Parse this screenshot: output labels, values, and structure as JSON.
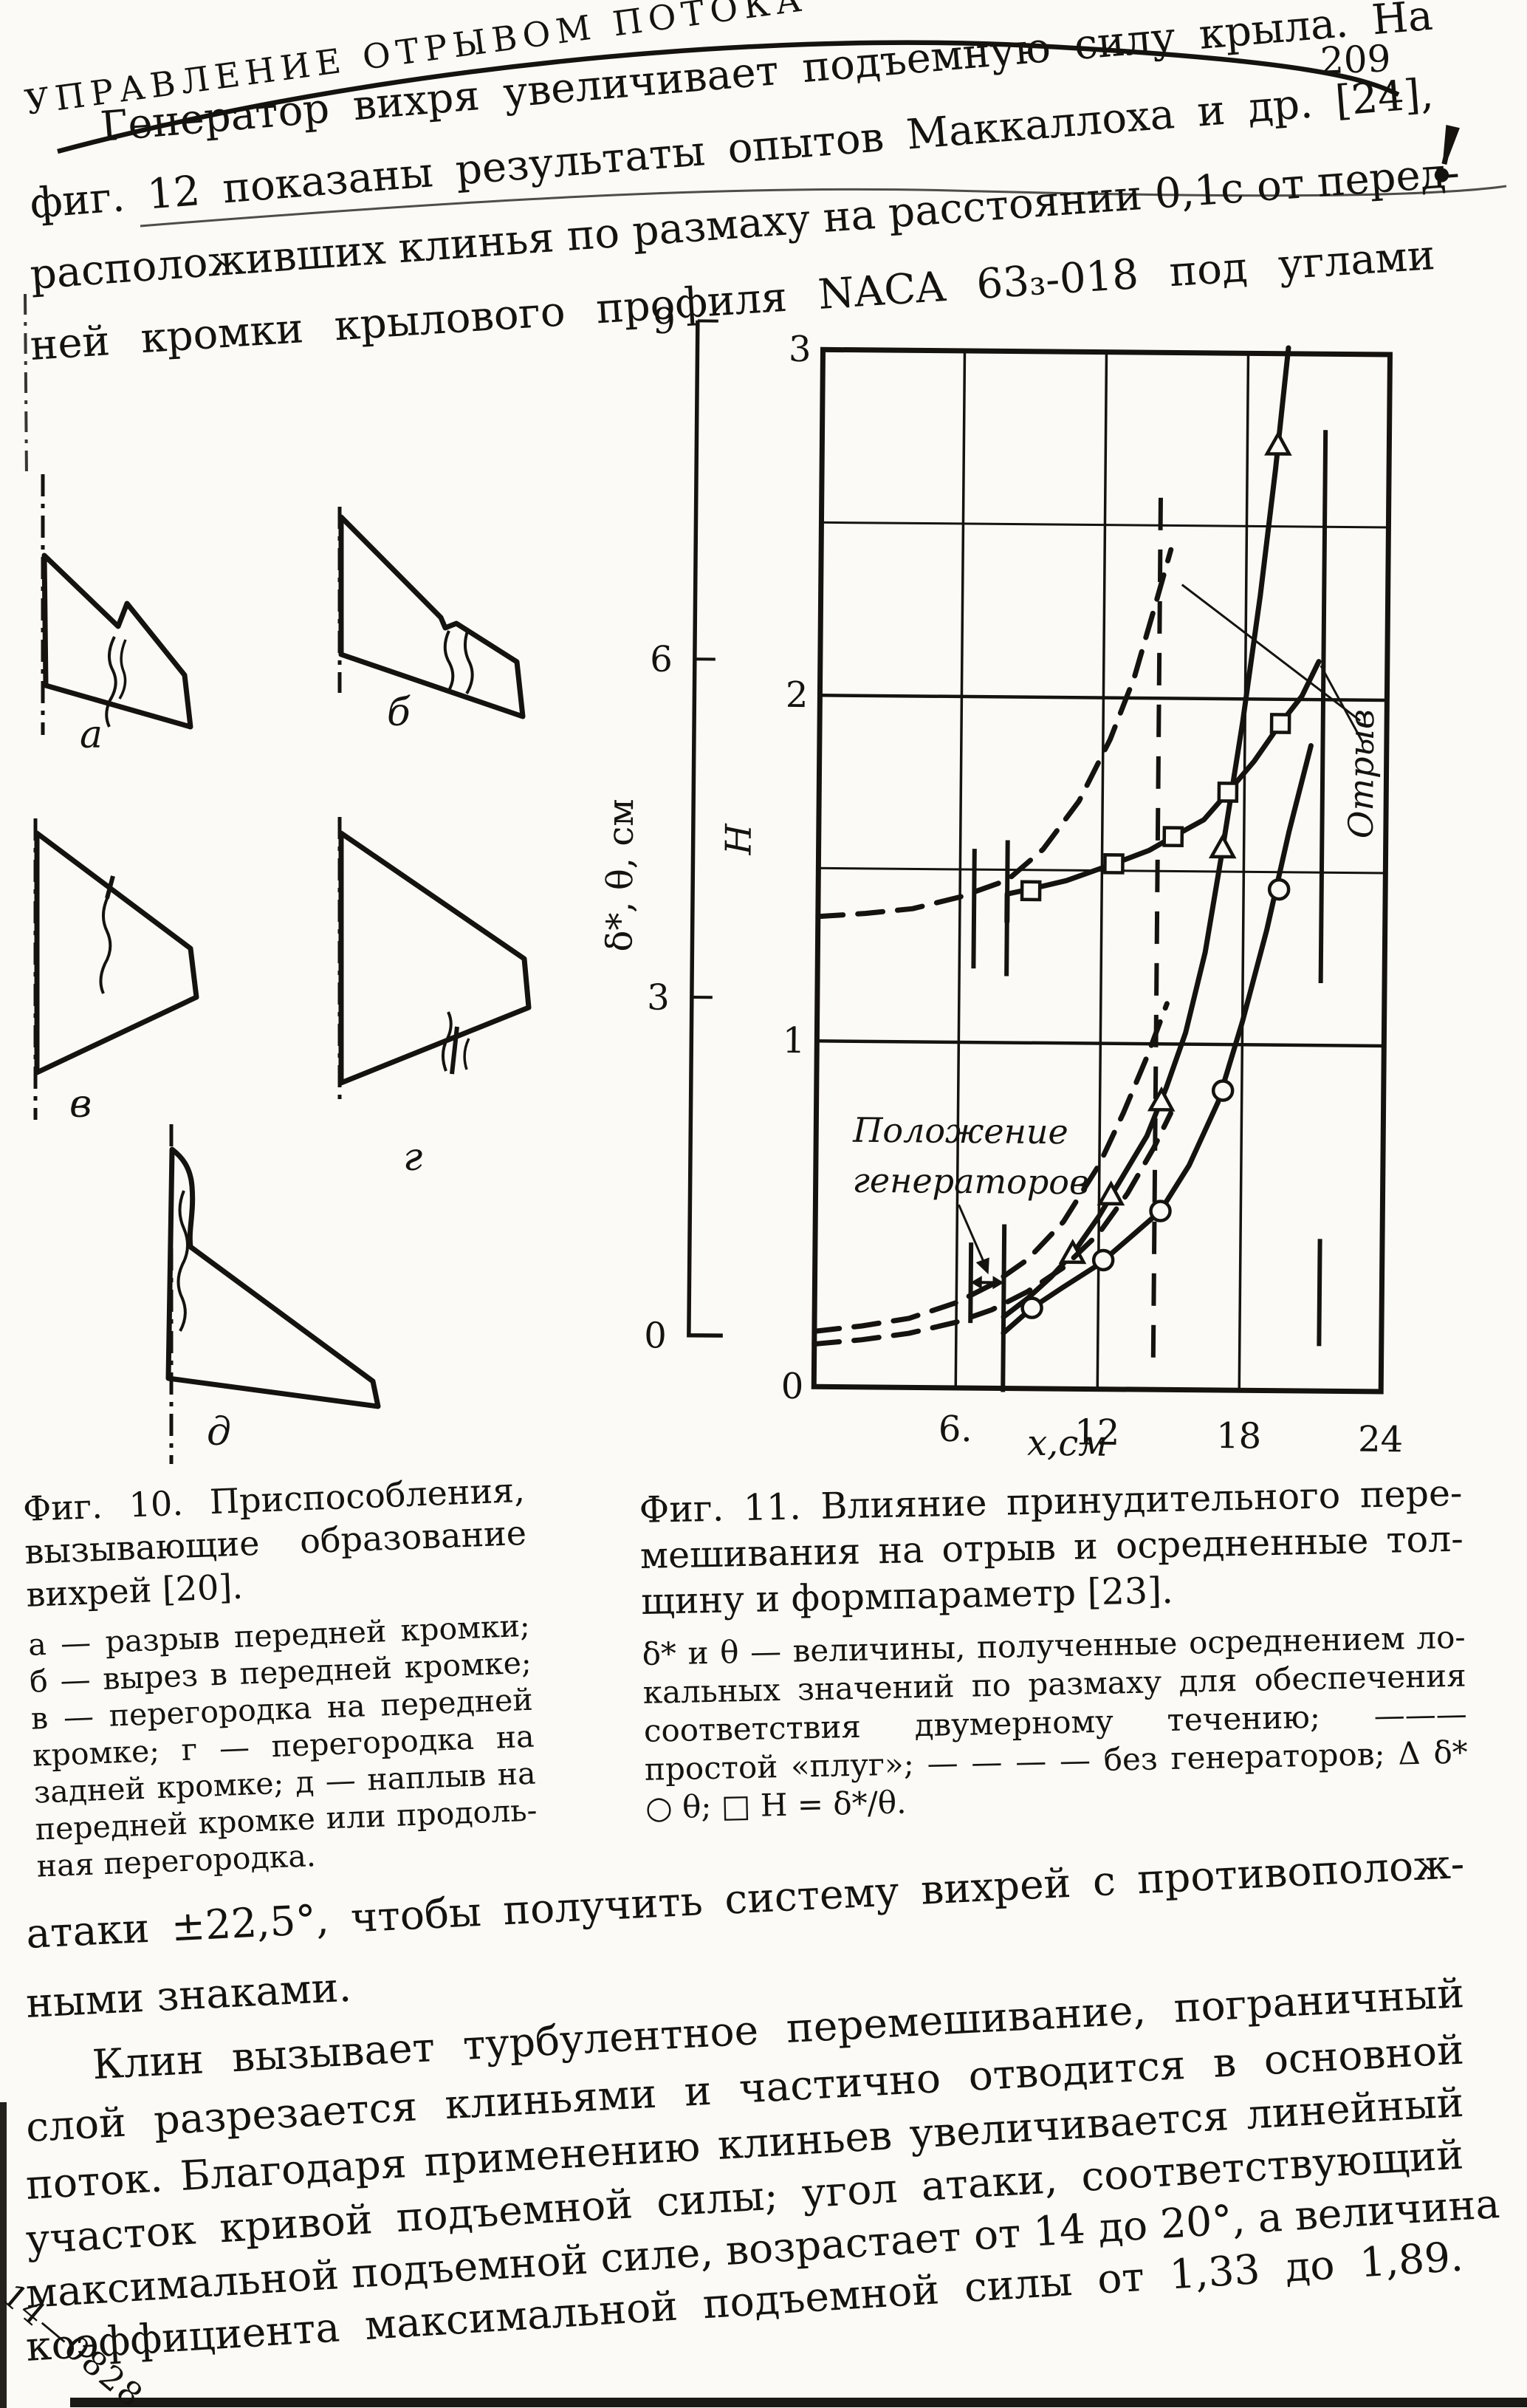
{
  "page": {
    "header": "УПРАВЛЕНИЕ ОТРЫВОМ ПОТОКА",
    "page_number": "209",
    "margin_mark": "!",
    "print_code": "14—0828"
  },
  "intro_paragraph": {
    "lines": [
      "Генератор вихря увеличивает подъемную силу крыла. На",
      "фиг. 12 показаны результаты опытов Маккаллоха и др. [24],",
      "расположивших клинья по размаху на расстоянии 0,1с от перед-",
      "ней кромки крылового профиля NACA 63₃-018 под углами"
    ]
  },
  "figure10": {
    "labels": {
      "a": "а",
      "b": "б",
      "v": "в",
      "g": "г",
      "d": "д"
    },
    "caption_title_lines": [
      "Фиг. 10. Приспособления,",
      "вызывающие образование",
      "вихрей [20]."
    ],
    "caption_legend_lines": [
      "а — разрыв передней кромки;",
      "б — вырез в передней кромке;",
      "в — перегородка на передней",
      "кромке; г — перегородка на",
      "задней кромке; д — наплыв на",
      "передней кромке или продоль-",
      "ная перегородка."
    ]
  },
  "figure11": {
    "caption_title_lines": [
      "Фиг. 11. Влияние принудительного пере-",
      "мешивания на отрыв и осредненные тол-",
      "щину и формпараметр [23]."
    ],
    "caption_legend_lines": [
      "δ* и θ — величины, полученные осреднением ло-",
      "кальных значений по размаху для обеспечения",
      "соответствия двумерному течению; ———",
      "простой «плуг»; — — — — без генераторов; Δ δ*",
      "○ θ; □ Н = δ*/θ."
    ]
  },
  "bottom_paragraphs": {
    "lines": [
      "атаки ±22,5°, чтобы получить систему вихрей с противополож-",
      "ными знаками.",
      "Клин вызывает турбулентное перемешивание, пограничный",
      "слой разрезается клиньями и частично отводится в основной",
      "поток. Благодаря применению клиньев увеличивается линейный",
      "участок кривой подъемной силы; угол атаки, соответствующий",
      "максимальной подъемной силе, возрастает от 14 до 20°, а величина",
      "коэффициента максимальной подъемной силы от 1,33 до 1,89."
    ]
  },
  "chart_data": {
    "type": "line",
    "figure": "Фиг. 11",
    "xlabel": "х,см",
    "xlim": [
      0,
      24
    ],
    "x_ticks": [
      6,
      12,
      18,
      24
    ],
    "x_tick_labels": [
      "6.",
      "12",
      "18",
      "24"
    ],
    "x_origin_label": "0",
    "left_axis": {
      "label": "δ*, θ, см",
      "lim": [
        0,
        9
      ],
      "ticks": [
        0,
        3,
        6,
        9
      ]
    },
    "inner_axis": {
      "label": "Н",
      "lim": [
        0,
        3
      ],
      "ticks": [
        1,
        2,
        3
      ]
    },
    "grid_h_inner": [
      1,
      1.5,
      2,
      2.5
    ],
    "grid_v_x": [
      6,
      12,
      18
    ],
    "legend": {
      "solid": "простой «плуг» (с генераторами)",
      "dashed": "без генераторов",
      "triangle": "δ*",
      "circle": "θ",
      "square": "Н = δ*/θ"
    },
    "annotations": {
      "generator_position_label": [
        "Положение",
        "генераторов"
      ],
      "generator_interval_x": [
        6.6,
        8.0
      ],
      "separation_label": "Отрыв",
      "separation_x_without_generators": 14.35,
      "separation_x_with_generators": 21.3
    },
    "series": [
      {
        "name": "δ*, простой «плуг»",
        "axis": "left",
        "style": "solid",
        "marker": "triangle",
        "points": [
          [
            8,
            0.62
          ],
          [
            9,
            0.78
          ],
          [
            10,
            0.97
          ],
          [
            11,
            1.2
          ],
          [
            12,
            1.5
          ],
          [
            13,
            1.85
          ],
          [
            14,
            2.2
          ],
          [
            14.8,
            2.62
          ],
          [
            15.6,
            3.1
          ],
          [
            16.4,
            3.8
          ],
          [
            17.1,
            4.7
          ],
          [
            17.9,
            5.8
          ],
          [
            18.6,
            6.9
          ],
          [
            19.2,
            8.0
          ],
          [
            19.7,
            9.05
          ]
        ],
        "markers": [
          [
            10.9,
            1.17
          ],
          [
            12.5,
            1.68
          ],
          [
            14.6,
            2.5
          ],
          [
            17.1,
            4.7
          ],
          [
            19.3,
            8.2
          ]
        ]
      },
      {
        "name": "θ, простой «плуг»",
        "axis": "left",
        "style": "solid",
        "marker": "circle",
        "points": [
          [
            8,
            0.48
          ],
          [
            9.2,
            0.7
          ],
          [
            10.5,
            0.88
          ],
          [
            12,
            1.08
          ],
          [
            13.5,
            1.35
          ],
          [
            14.6,
            1.55
          ],
          [
            15.8,
            1.95
          ],
          [
            17,
            2.5
          ],
          [
            18,
            3.2
          ],
          [
            19,
            4.0
          ],
          [
            19.9,
            4.85
          ],
          [
            20.8,
            5.6
          ]
        ],
        "markers": [
          [
            9.2,
            0.7
          ],
          [
            12.2,
            1.12
          ],
          [
            14.6,
            1.55
          ],
          [
            17.2,
            2.6
          ],
          [
            19.5,
            4.35
          ]
        ]
      },
      {
        "name": "Н = δ*/θ, простой «плуг»",
        "axis": "inner",
        "style": "solid",
        "marker": "square",
        "points": [
          [
            8,
            1.35
          ],
          [
            8,
            1.43
          ],
          [
            9,
            1.445
          ],
          [
            10.5,
            1.47
          ],
          [
            12.5,
            1.52
          ],
          [
            14,
            1.56
          ],
          [
            15,
            1.6
          ],
          [
            16.3,
            1.65
          ],
          [
            17.3,
            1.73
          ],
          [
            18.4,
            1.82
          ],
          [
            19.5,
            1.93
          ],
          [
            20.4,
            2.01
          ],
          [
            21.1,
            2.11
          ]
        ],
        "markers": [
          [
            9,
            1.44
          ],
          [
            12.5,
            1.52
          ],
          [
            15,
            1.6
          ],
          [
            17.3,
            1.73
          ],
          [
            19.5,
            1.93
          ]
        ]
      },
      {
        "name": "δ*, без генераторов",
        "axis": "left",
        "style": "dashed",
        "marker": null,
        "points": [
          [
            0,
            0.48
          ],
          [
            2,
            0.53
          ],
          [
            4,
            0.6
          ],
          [
            6,
            0.74
          ],
          [
            7.5,
            0.9
          ],
          [
            9,
            1.12
          ],
          [
            10.5,
            1.45
          ],
          [
            12,
            1.95
          ],
          [
            13,
            2.4
          ],
          [
            14,
            2.9
          ],
          [
            14.8,
            3.35
          ]
        ],
        "markers": []
      },
      {
        "name": "θ, без генераторов",
        "axis": "left",
        "style": "dashed",
        "marker": null,
        "points": [
          [
            0,
            0.37
          ],
          [
            2,
            0.41
          ],
          [
            4,
            0.47
          ],
          [
            6,
            0.57
          ],
          [
            7.5,
            0.68
          ],
          [
            9,
            0.84
          ],
          [
            10.5,
            1.05
          ],
          [
            12,
            1.35
          ],
          [
            13.2,
            1.7
          ],
          [
            14.3,
            2.1
          ],
          [
            15,
            2.4
          ]
        ],
        "markers": []
      },
      {
        "name": "Н, без генераторов",
        "axis": "inner",
        "style": "dashed",
        "marker": null,
        "points": [
          [
            0,
            1.36
          ],
          [
            2,
            1.37
          ],
          [
            4,
            1.385
          ],
          [
            6,
            1.42
          ],
          [
            8,
            1.47
          ],
          [
            9.5,
            1.56
          ],
          [
            11,
            1.7
          ],
          [
            12.3,
            1.88
          ],
          [
            13.3,
            2.06
          ],
          [
            14.2,
            2.28
          ],
          [
            14.8,
            2.43
          ]
        ],
        "markers": []
      }
    ]
  }
}
